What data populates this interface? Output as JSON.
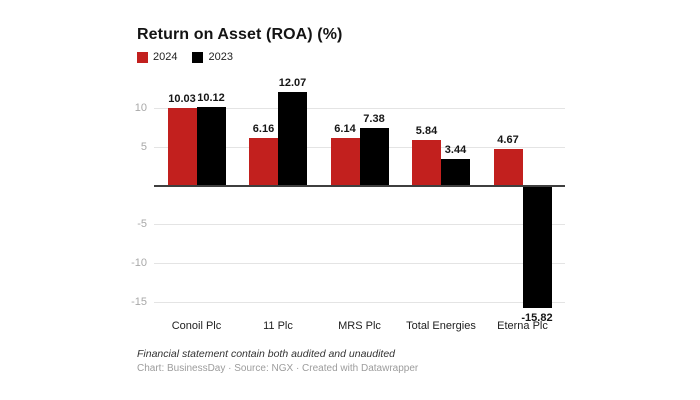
{
  "title": "Return on Asset (ROA) (%)",
  "chart_data": {
    "type": "bar",
    "title": "Return on Asset (ROA) (%)",
    "categories": [
      "Conoil Plc",
      "11 Plc",
      "MRS Plc",
      "Total Energies",
      "Eterna Plc"
    ],
    "series": [
      {
        "name": "2024",
        "color": "#c2201e",
        "values": [
          10.03,
          6.16,
          6.14,
          5.84,
          4.67
        ]
      },
      {
        "name": "2023",
        "color": "#000000",
        "values": [
          10.12,
          12.07,
          7.38,
          3.44,
          -15.82
        ]
      }
    ],
    "yticks": [
      10,
      5,
      -5,
      -10,
      -15
    ],
    "ylim": [
      -16.6,
      12.8
    ],
    "grid": true,
    "zero_baseline": true,
    "legend_position": "top-left",
    "value_labels": true
  },
  "colors": {
    "bar_2024": "#c2201e",
    "bar_2023": "#000000",
    "gridline": "#e4e4e4",
    "zeroline": "#3f3f3f",
    "tick_label": "#a8a8a8"
  },
  "footer": {
    "note": "Financial statement contain both audited and unaudited",
    "credits": "Chart: BusinessDay · Source: NGX · Created with Datawrapper"
  }
}
